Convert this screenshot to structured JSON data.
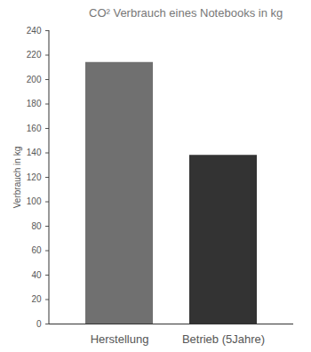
{
  "chart_data": {
    "type": "bar",
    "title": "CO² Verbrauch eines Notebooks in kg",
    "y_label": "Verbrauch in kg",
    "categories": [
      "Herstellung",
      "Betrieb (5Jahre)"
    ],
    "values": [
      214,
      138
    ],
    "colors": [
      "#707070",
      "#333333"
    ],
    "ylim": [
      0,
      240
    ],
    "yticks": [
      0,
      20,
      40,
      60,
      80,
      100,
      120,
      140,
      160,
      180,
      200,
      220,
      240
    ],
    "grid": false
  }
}
